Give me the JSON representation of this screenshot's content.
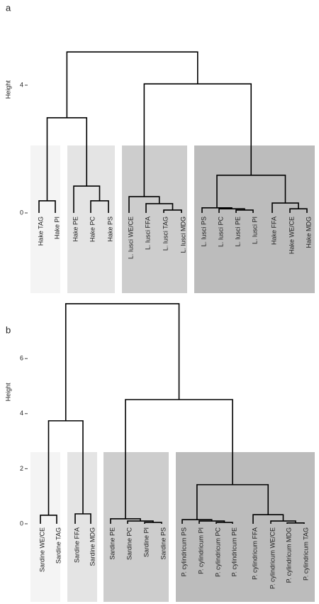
{
  "chart_data": [
    {
      "type": "dendrogram",
      "title": "a",
      "y_label": "Height",
      "ylim": [
        -2,
        5.5
      ],
      "yticks": [
        0,
        4
      ],
      "leaves": [
        "Hake TAG",
        "Hake PI",
        "Hake PE",
        "Hake PC",
        "Hake PS",
        "L. lusci WE/CE",
        "L. lusci FFA",
        "L. lusci TAG",
        "L. lusci MDG",
        "L. lusci PS",
        "L. lusci PC",
        "L. lusci PE",
        "L. lusci PI",
        "Hake FFA",
        "Hake WE/CE",
        "Hake MDG"
      ],
      "merges": [
        {
          "left": -1,
          "right": -2,
          "height": 0.38
        },
        {
          "left": -4,
          "right": -5,
          "height": 0.38
        },
        {
          "left": -3,
          "right": 2,
          "height": 0.84
        },
        {
          "left": 1,
          "right": 3,
          "height": 2.98
        },
        {
          "left": -8,
          "right": -9,
          "height": 0.09
        },
        {
          "left": -7,
          "right": 5,
          "height": 0.29
        },
        {
          "left": -6,
          "right": 6,
          "height": 0.51
        },
        {
          "left": -12,
          "right": -13,
          "height": 0.09
        },
        {
          "left": -11,
          "right": 8,
          "height": 0.13
        },
        {
          "left": -10,
          "right": 9,
          "height": 0.16
        },
        {
          "left": -15,
          "right": -16,
          "height": 0.13
        },
        {
          "left": -14,
          "right": 11,
          "height": 0.31
        },
        {
          "left": 10,
          "right": 12,
          "height": 1.18
        },
        {
          "left": 7,
          "right": 13,
          "height": 4.04
        },
        {
          "left": 4,
          "right": 14,
          "height": 5.04
        }
      ]
    },
    {
      "type": "dendrogram",
      "title": "b",
      "y_label": "Height",
      "ylim": [
        -2.8,
        8.5
      ],
      "yticks": [
        0,
        2,
        4,
        6
      ],
      "leaves": [
        "Sardine WE/CE",
        "Sardine TAG",
        "Sardine FFA",
        "Sardine MDG",
        "Sardine PE",
        "Sardine PC",
        "Sardine PI",
        "Sardine PS",
        "P. cylindricum PS",
        "P. cylindricum PI",
        "P. cylindricum PC",
        "P. cylindricum PE",
        "P. cylindricum FFA",
        "P. cylindricum WE/CE",
        "P. cylindricum MDG",
        "P. cylindricum TAG"
      ],
      "merges": [
        {
          "left": -1,
          "right": -2,
          "height": 0.31
        },
        {
          "left": -3,
          "right": -4,
          "height": 0.36
        },
        {
          "left": 1,
          "right": 2,
          "height": 3.74
        },
        {
          "left": -7,
          "right": -8,
          "height": 0.05
        },
        {
          "left": -6,
          "right": 4,
          "height": 0.1
        },
        {
          "left": -5,
          "right": 5,
          "height": 0.18
        },
        {
          "left": -11,
          "right": -12,
          "height": 0.05
        },
        {
          "left": -10,
          "right": 7,
          "height": 0.1
        },
        {
          "left": -9,
          "right": 8,
          "height": 0.15
        },
        {
          "left": -15,
          "right": -16,
          "height": 0.03
        },
        {
          "left": -14,
          "right": 10,
          "height": 0.1
        },
        {
          "left": -13,
          "right": 11,
          "height": 0.33
        },
        {
          "left": 9,
          "right": 12,
          "height": 1.42
        },
        {
          "left": 6,
          "right": 13,
          "height": 4.51
        },
        {
          "left": 3,
          "right": 14,
          "height": 7.99
        }
      ]
    }
  ]
}
